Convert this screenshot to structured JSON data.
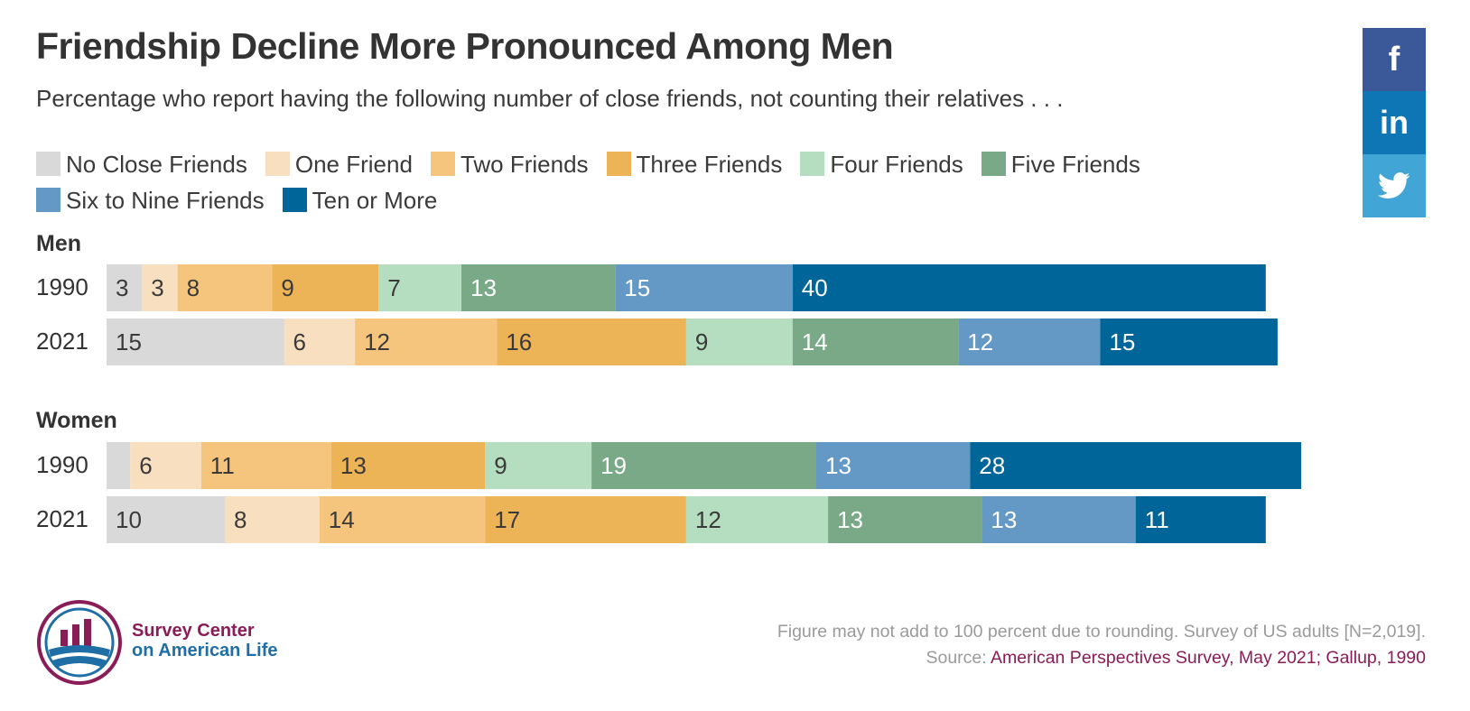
{
  "title": "Friendship Decline More Pronounced Among Men",
  "subtitle": "Percentage who report having the following number of close friends, not counting their relatives . . .",
  "social": [
    {
      "name": "facebook",
      "label": "f",
      "color": "#3b5998"
    },
    {
      "name": "linkedin",
      "label": "in",
      "color": "#0e76b5"
    },
    {
      "name": "twitter",
      "label": "",
      "color": "#41a6d6"
    }
  ],
  "logo": {
    "line1": "Survey Center",
    "line2": "on American Life"
  },
  "footnote": {
    "note": "Figure may not add to 100 percent due to rounding. Survey of US adults [N=2,019].",
    "source_prefix": "Source: ",
    "source_text": "American Perspectives Survey, May 2021; Gallup, 1990"
  },
  "chart_data": {
    "type": "bar",
    "orientation": "horizontal-stacked",
    "title": "Friendship Decline More Pronounced Among Men",
    "legend_position": "top",
    "series": [
      {
        "name": "No Close Friends",
        "color": "#d9d9d9",
        "label_color": "#3a3a3a"
      },
      {
        "name": "One Friend",
        "color": "#f8dfbf",
        "label_color": "#3a3a3a"
      },
      {
        "name": "Two Friends",
        "color": "#f5c57d",
        "label_color": "#3a3a3a"
      },
      {
        "name": "Three Friends",
        "color": "#edb457",
        "label_color": "#3a3a3a"
      },
      {
        "name": "Four Friends",
        "color": "#b5dec0",
        "label_color": "#3a3a3a"
      },
      {
        "name": "Five Friends",
        "color": "#79a986",
        "label_color": "#ffffff"
      },
      {
        "name": "Six to Nine Friends",
        "color": "#6399c4",
        "label_color": "#ffffff"
      },
      {
        "name": "Ten or More",
        "color": "#006699",
        "label_color": "#ffffff"
      }
    ],
    "groups": [
      {
        "name": "Men",
        "rows": [
          {
            "year": "1990",
            "values": [
              3,
              3,
              8,
              9,
              7,
              13,
              15,
              40
            ],
            "labels": [
              "3",
              "3",
              "8",
              "9",
              "7",
              "13",
              "15",
              "40"
            ]
          },
          {
            "year": "2021",
            "values": [
              15,
              6,
              12,
              16,
              9,
              14,
              12,
              15
            ],
            "labels": [
              "15",
              "6",
              "12",
              "16",
              "9",
              "14",
              "12",
              "15"
            ]
          }
        ]
      },
      {
        "name": "Women",
        "rows": [
          {
            "year": "1990",
            "values": [
              2,
              6,
              11,
              13,
              9,
              19,
              13,
              28
            ],
            "labels": [
              "",
              "6",
              "11",
              "13",
              "9",
              "19",
              "13",
              "28"
            ]
          },
          {
            "year": "2021",
            "values": [
              10,
              8,
              14,
              17,
              12,
              13,
              13,
              11
            ],
            "labels": [
              "10",
              "8",
              "14",
              "17",
              "12",
              "13",
              "13",
              "11"
            ]
          }
        ]
      }
    ]
  }
}
